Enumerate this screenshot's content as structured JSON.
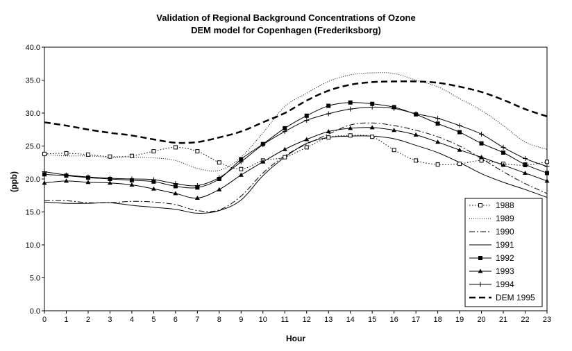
{
  "chart_data": {
    "type": "line",
    "title": "Validation of Regional Background Concentrations of Ozone",
    "subtitle": "DEM model for Copenhagen (Frederiksborg)",
    "xlabel": "Hour",
    "ylabel": "(ppb)",
    "xlim": [
      0,
      23
    ],
    "ylim": [
      0,
      40
    ],
    "x_ticks": [
      0,
      1,
      2,
      3,
      4,
      5,
      6,
      7,
      8,
      9,
      10,
      11,
      12,
      13,
      14,
      15,
      16,
      17,
      18,
      19,
      20,
      21,
      22,
      23
    ],
    "y_ticks": [
      "0.0",
      "5.0",
      "10.0",
      "15.0",
      "20.0",
      "25.0",
      "30.0",
      "35.0",
      "40.0"
    ],
    "grid": false,
    "legend_position": "bottom-right",
    "x": [
      0,
      1,
      2,
      3,
      4,
      5,
      6,
      7,
      8,
      9,
      10,
      11,
      12,
      13,
      14,
      15,
      16,
      17,
      18,
      19,
      20,
      21,
      22,
      23
    ],
    "series": [
      {
        "name": "1988",
        "style": "dotted-open-square",
        "color": "#000000",
        "values": [
          23.8,
          23.9,
          23.7,
          23.4,
          23.5,
          24.2,
          24.8,
          24.2,
          22.5,
          21.5,
          22.8,
          23.3,
          24.8,
          26.3,
          26.6,
          26.4,
          24.4,
          22.8,
          22.2,
          22.3,
          22.8,
          22.3,
          22.1,
          22.6
        ]
      },
      {
        "name": "1989",
        "style": "dotted",
        "color": "#000000",
        "values": [
          23.7,
          23.5,
          23.5,
          23.3,
          23.3,
          23.2,
          22.8,
          21.6,
          21.3,
          23.3,
          27.0,
          31.0,
          33.0,
          34.8,
          35.8,
          36.1,
          36.0,
          35.0,
          34.0,
          32.2,
          30.4,
          28.1,
          25.6,
          24.5
        ]
      },
      {
        "name": "1990",
        "style": "dash-dot",
        "color": "#000000",
        "values": [
          16.7,
          16.7,
          16.4,
          16.4,
          16.6,
          16.5,
          16.1,
          15.2,
          15.3,
          17.4,
          20.9,
          23.5,
          25.3,
          26.8,
          28.2,
          28.5,
          28.1,
          27.4,
          26.4,
          25.0,
          23.1,
          21.1,
          19.3,
          17.8
        ]
      },
      {
        "name": "1991",
        "style": "solid",
        "color": "#000000",
        "values": [
          16.5,
          16.3,
          16.3,
          16.4,
          16.0,
          15.7,
          15.4,
          14.8,
          15.2,
          16.8,
          20.5,
          23.3,
          25.4,
          26.3,
          26.5,
          26.5,
          26.1,
          25.1,
          24.0,
          22.5,
          20.8,
          19.5,
          18.4,
          17.2
        ]
      },
      {
        "name": "1992",
        "style": "solid-filled-square",
        "color": "#000000",
        "values": [
          20.7,
          20.5,
          20.2,
          20.0,
          19.8,
          19.6,
          18.9,
          18.7,
          20.0,
          23.0,
          25.3,
          27.7,
          29.6,
          31.1,
          31.6,
          31.4,
          30.9,
          29.8,
          28.4,
          27.1,
          25.4,
          24.0,
          22.2,
          20.9
        ]
      },
      {
        "name": "1993",
        "style": "solid-filled-triangle",
        "color": "#000000",
        "values": [
          19.4,
          19.7,
          19.5,
          19.4,
          19.1,
          18.5,
          17.8,
          17.1,
          18.4,
          20.6,
          22.6,
          24.5,
          26.0,
          27.2,
          27.7,
          27.8,
          27.4,
          26.7,
          25.6,
          24.4,
          23.3,
          22.1,
          20.9,
          19.7
        ]
      },
      {
        "name": "1994",
        "style": "solid-plus",
        "color": "#000000",
        "values": [
          21.1,
          20.6,
          20.3,
          20.1,
          20.0,
          19.9,
          19.3,
          19.0,
          20.2,
          22.6,
          25.2,
          27.2,
          28.9,
          29.9,
          30.6,
          30.9,
          30.7,
          29.9,
          29.2,
          28.1,
          26.8,
          24.8,
          23.1,
          21.9
        ]
      },
      {
        "name": "DEM 1995",
        "style": "dashed-thick",
        "color": "#000000",
        "values": [
          28.6,
          28.1,
          27.5,
          27.0,
          26.6,
          26.0,
          25.5,
          25.6,
          26.3,
          27.2,
          28.6,
          30.0,
          31.9,
          33.4,
          34.3,
          34.7,
          34.8,
          34.8,
          34.6,
          34.0,
          33.2,
          32.0,
          30.6,
          29.5
        ]
      }
    ]
  }
}
